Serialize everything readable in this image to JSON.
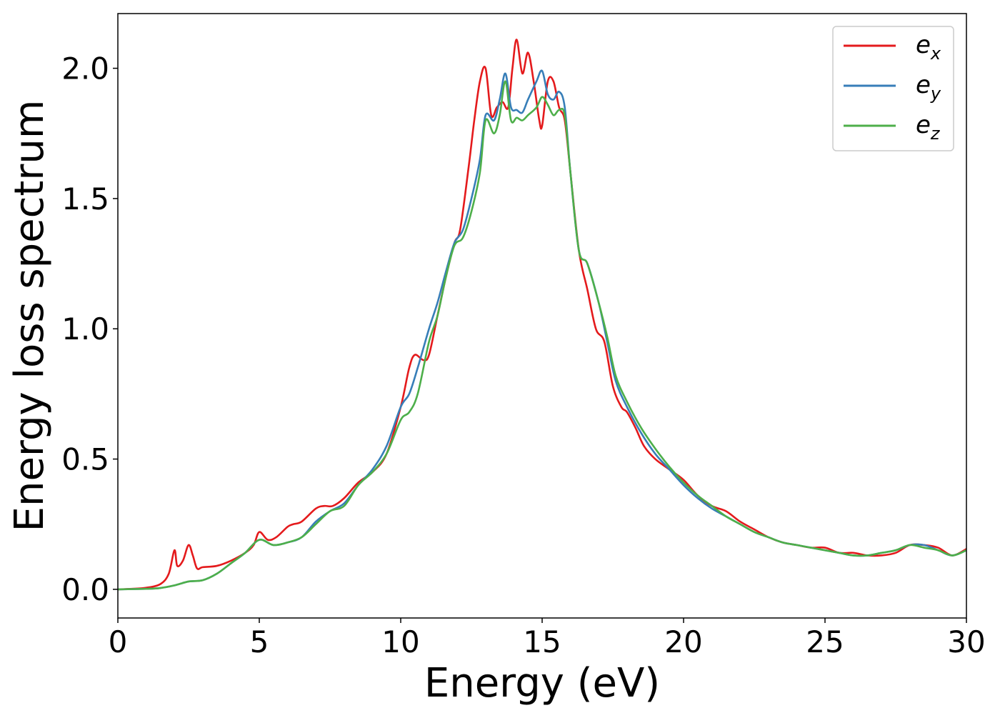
{
  "chart_data": {
    "type": "line",
    "xlabel": "Energy (eV)",
    "ylabel": "Energy loss spectrum",
    "xlim": [
      0,
      30
    ],
    "ylim": [
      -0.11,
      2.21
    ],
    "xticks": [
      "0",
      "5",
      "10",
      "15",
      "20",
      "25",
      "30"
    ],
    "yticks": [
      "0.0",
      "0.5",
      "1.0",
      "1.5",
      "2.0"
    ],
    "grid": false,
    "legend_position": "top-right",
    "series": [
      {
        "name": "e_x",
        "label_base": "e",
        "label_sub": "x",
        "color": "#e41a1c",
        "x": [
          0,
          0.5,
          1.0,
          1.5,
          1.8,
          2.0,
          2.1,
          2.3,
          2.5,
          2.65,
          2.8,
          3.0,
          3.5,
          4.0,
          4.5,
          4.8,
          5.0,
          5.3,
          5.6,
          6.0,
          6.2,
          6.5,
          7.0,
          7.3,
          7.6,
          8.0,
          8.5,
          9.0,
          9.5,
          10.0,
          10.3,
          10.5,
          10.8,
          11.0,
          11.3,
          11.6,
          11.9,
          12.1,
          12.4,
          12.6,
          12.8,
          13.0,
          13.2,
          13.4,
          13.6,
          13.8,
          13.95,
          14.1,
          14.3,
          14.5,
          14.7,
          14.9,
          15.0,
          15.2,
          15.4,
          15.6,
          15.8,
          16.0,
          16.3,
          16.6,
          16.9,
          17.2,
          17.5,
          17.8,
          18.0,
          18.3,
          18.6,
          19.0,
          19.5,
          20.0,
          20.5,
          21.0,
          21.5,
          22.0,
          22.5,
          23.0,
          23.5,
          24.0,
          24.5,
          25.0,
          25.5,
          26.0,
          26.5,
          27.0,
          27.5,
          28.0,
          28.5,
          29.0,
          29.5,
          30.0
        ],
        "values": [
          0,
          0.002,
          0.006,
          0.02,
          0.06,
          0.15,
          0.09,
          0.11,
          0.17,
          0.13,
          0.08,
          0.085,
          0.09,
          0.11,
          0.14,
          0.17,
          0.22,
          0.19,
          0.2,
          0.24,
          0.25,
          0.26,
          0.31,
          0.32,
          0.32,
          0.35,
          0.41,
          0.45,
          0.52,
          0.7,
          0.85,
          0.9,
          0.88,
          0.9,
          1.05,
          1.2,
          1.33,
          1.38,
          1.62,
          1.8,
          1.95,
          2.0,
          1.82,
          1.85,
          1.87,
          1.85,
          2.0,
          2.11,
          1.98,
          2.06,
          1.95,
          1.8,
          1.78,
          1.95,
          1.95,
          1.85,
          1.8,
          1.6,
          1.3,
          1.15,
          1.0,
          0.95,
          0.78,
          0.7,
          0.68,
          0.62,
          0.55,
          0.5,
          0.46,
          0.42,
          0.36,
          0.32,
          0.3,
          0.26,
          0.23,
          0.2,
          0.18,
          0.17,
          0.16,
          0.16,
          0.14,
          0.14,
          0.13,
          0.13,
          0.14,
          0.17,
          0.17,
          0.16,
          0.13,
          0.155
        ]
      },
      {
        "name": "e_y",
        "label_base": "e",
        "label_sub": "y",
        "color": "#377eb8",
        "x": [
          0,
          1.0,
          1.5,
          2.0,
          2.5,
          3.0,
          3.5,
          4.0,
          4.5,
          5.0,
          5.5,
          6.0,
          6.5,
          7.0,
          7.5,
          8.0,
          8.5,
          9.0,
          9.5,
          10.0,
          10.3,
          10.6,
          11.0,
          11.3,
          11.6,
          11.9,
          12.2,
          12.5,
          12.8,
          13.0,
          13.3,
          13.5,
          13.7,
          13.9,
          14.1,
          14.3,
          14.5,
          14.8,
          15.0,
          15.2,
          15.4,
          15.6,
          15.8,
          16.0,
          16.3,
          16.6,
          17.0,
          17.3,
          17.6,
          18.0,
          18.5,
          19.0,
          19.5,
          20.0,
          20.5,
          21.0,
          21.5,
          22.0,
          22.5,
          23.0,
          23.5,
          24.0,
          24.5,
          25.0,
          25.5,
          26.0,
          26.5,
          27.0,
          27.5,
          28.0,
          28.5,
          29.0,
          29.5,
          30.0
        ],
        "values": [
          0,
          0.002,
          0.005,
          0.015,
          0.03,
          0.035,
          0.06,
          0.1,
          0.14,
          0.19,
          0.17,
          0.18,
          0.2,
          0.26,
          0.3,
          0.33,
          0.4,
          0.46,
          0.55,
          0.7,
          0.75,
          0.85,
          1.0,
          1.1,
          1.22,
          1.33,
          1.38,
          1.5,
          1.65,
          1.82,
          1.8,
          1.88,
          1.98,
          1.85,
          1.84,
          1.83,
          1.88,
          1.95,
          1.99,
          1.9,
          1.88,
          1.91,
          1.85,
          1.6,
          1.3,
          1.25,
          1.1,
          0.95,
          0.8,
          0.7,
          0.6,
          0.52,
          0.46,
          0.4,
          0.35,
          0.31,
          0.28,
          0.25,
          0.22,
          0.2,
          0.18,
          0.17,
          0.16,
          0.15,
          0.14,
          0.13,
          0.13,
          0.14,
          0.15,
          0.17,
          0.17,
          0.15,
          0.13,
          0.15
        ]
      },
      {
        "name": "e_z",
        "label_base": "e",
        "label_sub": "z",
        "color": "#4daf4a",
        "x": [
          0,
          1.0,
          1.5,
          2.0,
          2.5,
          3.0,
          3.5,
          4.0,
          4.5,
          5.0,
          5.5,
          6.0,
          6.5,
          7.0,
          7.5,
          8.0,
          8.5,
          9.0,
          9.5,
          10.0,
          10.3,
          10.6,
          11.0,
          11.3,
          11.6,
          11.9,
          12.2,
          12.5,
          12.8,
          13.0,
          13.3,
          13.5,
          13.7,
          13.9,
          14.1,
          14.3,
          14.5,
          14.8,
          15.0,
          15.2,
          15.4,
          15.6,
          15.8,
          16.0,
          16.3,
          16.6,
          17.0,
          17.3,
          17.6,
          18.0,
          18.5,
          19.0,
          19.5,
          20.0,
          20.5,
          21.0,
          21.5,
          22.0,
          22.5,
          23.0,
          23.5,
          24.0,
          24.5,
          25.0,
          25.5,
          26.0,
          26.5,
          27.0,
          27.5,
          28.0,
          28.5,
          29.0,
          29.5,
          30.0
        ],
        "values": [
          0,
          0.002,
          0.005,
          0.015,
          0.03,
          0.035,
          0.06,
          0.1,
          0.14,
          0.19,
          0.17,
          0.18,
          0.2,
          0.25,
          0.3,
          0.32,
          0.4,
          0.45,
          0.52,
          0.65,
          0.68,
          0.75,
          0.95,
          1.05,
          1.2,
          1.32,
          1.35,
          1.45,
          1.6,
          1.8,
          1.75,
          1.82,
          1.95,
          1.8,
          1.81,
          1.8,
          1.82,
          1.85,
          1.89,
          1.86,
          1.82,
          1.84,
          1.82,
          1.6,
          1.3,
          1.25,
          1.1,
          0.97,
          0.82,
          0.72,
          0.62,
          0.54,
          0.47,
          0.41,
          0.36,
          0.32,
          0.28,
          0.25,
          0.22,
          0.2,
          0.18,
          0.17,
          0.16,
          0.15,
          0.14,
          0.13,
          0.13,
          0.14,
          0.15,
          0.17,
          0.16,
          0.15,
          0.13,
          0.15
        ]
      }
    ]
  }
}
